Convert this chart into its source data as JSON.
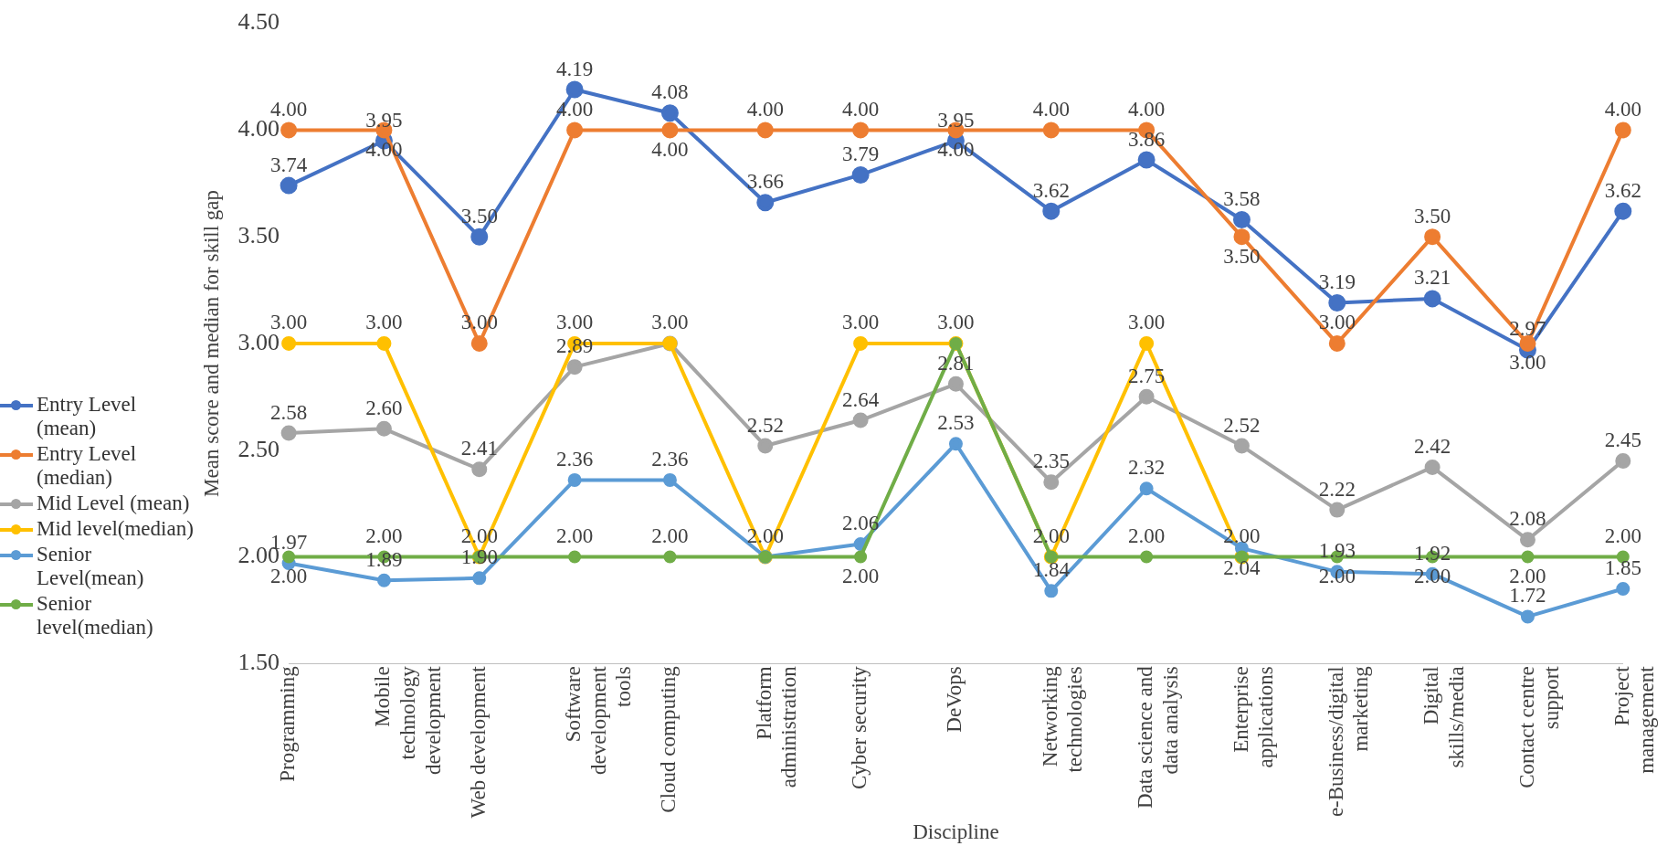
{
  "chart_data": {
    "type": "line",
    "xlabel": "Discipline",
    "ylabel": "Mean score and median for skill gap",
    "categories": [
      "Programming",
      "Mobile technology development",
      "Web development",
      "Software development tools",
      "Cloud computing",
      "Platform administration",
      "Cyber security",
      "DeVops",
      "Networking technologies",
      "Data science and data analysis",
      "Enterprise applications",
      "e-Business/digital marketing",
      "Digital skills/media",
      "Contact centre support",
      "Project management"
    ],
    "series": [
      {
        "name": "Entry Level (mean)",
        "color": "#4472c4",
        "values": [
          3.74,
          3.95,
          3.5,
          4.19,
          4.08,
          3.66,
          3.79,
          3.95,
          3.62,
          3.86,
          3.58,
          3.19,
          3.21,
          2.97,
          3.62
        ],
        "value_labels": [
          "3.74",
          "3.95",
          "3.50",
          "4.19",
          "4.08",
          "3.66",
          "3.79",
          "3.95",
          "3.62",
          "3.86",
          "3.58",
          "3.19",
          "3.21",
          "2.97",
          "3.62"
        ]
      },
      {
        "name": "Entry Level (median)",
        "color": "#ed7d31",
        "values": [
          4,
          4,
          3,
          4,
          4,
          4,
          4,
          4,
          4,
          4,
          3.5,
          3,
          3.5,
          3,
          4
        ],
        "value_labels": [
          "4.00",
          "4.00",
          "3.00",
          "4.00",
          "4.00",
          "4.00",
          "4.00",
          "4.00",
          "4.00",
          "4.00",
          "3.50",
          "3.00",
          "3.50",
          "3.00",
          "4.00"
        ]
      },
      {
        "name": "Mid Level (mean)",
        "color": "#a5a5a5",
        "values": [
          2.58,
          2.6,
          2.41,
          2.89,
          3.0,
          2.52,
          2.64,
          2.81,
          2.35,
          2.75,
          2.52,
          2.22,
          2.42,
          2.08,
          2.45
        ],
        "value_labels": [
          "2.58",
          "2.60",
          "2.41",
          "2.89",
          "3.00",
          "2.52",
          "2.64",
          "2.81",
          "2.35",
          "2.75",
          "2.52",
          "2.22",
          "2.42",
          "2.08",
          "2.45"
        ]
      },
      {
        "name": "Mid level(median)",
        "color": "#ffc000",
        "values": [
          3,
          3,
          2,
          3,
          3,
          2,
          3,
          3,
          2,
          3,
          2,
          null,
          null,
          null,
          null
        ],
        "value_labels": [
          "3.00",
          "3.00",
          "2.00",
          "3.00",
          null,
          "2.00",
          "3.00",
          "3.00",
          "2.00",
          "3.00",
          "2.00",
          null,
          null,
          null,
          null
        ]
      },
      {
        "name": "Senior Level(mean)",
        "color": "#5b9bd5",
        "values": [
          1.97,
          1.89,
          1.9,
          2.36,
          2.36,
          2.0,
          2.06,
          2.53,
          1.84,
          2.32,
          2.04,
          1.93,
          1.92,
          1.72,
          1.85
        ],
        "value_labels": [
          "1.97",
          "1.89",
          "1.90",
          "2.36",
          "2.36",
          null,
          "2.06",
          "2.53",
          "1.84",
          "2.32",
          "2.04",
          "1.93",
          "1.92",
          "1.72",
          "1.85"
        ]
      },
      {
        "name": "Senior level(median)",
        "color": "#70ad47",
        "values": [
          2,
          2,
          2,
          2,
          2,
          2,
          2,
          3,
          2,
          2,
          2,
          2,
          2,
          2,
          2
        ],
        "value_labels": [
          "2.00",
          "2.00",
          null,
          "2.00",
          "2.00",
          null,
          "2.00",
          null,
          null,
          "2.00",
          null,
          "2.00",
          "2.00",
          "2.00",
          "2.00"
        ]
      }
    ],
    "ylim": [
      1.5,
      4.5
    ],
    "yticks": [
      {
        "value": 1.5,
        "label": "1.50"
      },
      {
        "value": 2,
        "label": "2.00"
      },
      {
        "value": 2.5,
        "label": "2.50"
      },
      {
        "value": 3,
        "label": "3.00"
      },
      {
        "value": 3.5,
        "label": "3.50"
      },
      {
        "value": 4,
        "label": "4.00"
      },
      {
        "value": 4.5,
        "label": "4.50"
      }
    ],
    "grid": false,
    "legend": "left",
    "marker": "circle",
    "line_style": "solid"
  }
}
